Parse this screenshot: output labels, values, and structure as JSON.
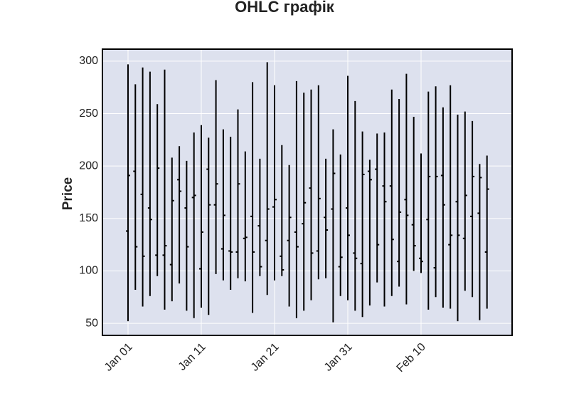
{
  "chart_data": {
    "type": "ohlc",
    "title": "OHLC графік",
    "y_label": "Price",
    "categories": [
      "Jan 01",
      "Jan 02",
      "Jan 03",
      "Jan 04",
      "Jan 05",
      "Jan 06",
      "Jan 07",
      "Jan 08",
      "Jan 09",
      "Jan 10",
      "Jan 11",
      "Jan 12",
      "Jan 13",
      "Jan 14",
      "Jan 15",
      "Jan 16",
      "Jan 17",
      "Jan 18",
      "Jan 19",
      "Jan 20",
      "Jan 21",
      "Jan 22",
      "Jan 23",
      "Jan 24",
      "Jan 25",
      "Jan 26",
      "Jan 27",
      "Jan 28",
      "Jan 29",
      "Jan 30",
      "Jan 31",
      "Feb 01",
      "Feb 02",
      "Feb 03",
      "Feb 04",
      "Feb 05",
      "Feb 06",
      "Feb 07",
      "Feb 08",
      "Feb 09",
      "Feb 10",
      "Feb 11",
      "Feb 12",
      "Feb 13",
      "Feb 14",
      "Feb 15",
      "Feb 16",
      "Feb 17",
      "Feb 18",
      "Feb 19"
    ],
    "open": [
      138,
      195,
      173,
      160,
      115,
      115,
      106,
      187,
      160,
      170,
      102,
      197,
      163,
      121,
      119,
      118,
      131,
      152,
      143,
      129,
      161,
      114,
      129,
      137,
      145,
      179,
      119,
      151,
      159,
      104,
      160,
      117,
      107,
      195,
      197,
      181,
      181,
      109,
      168,
      144,
      112,
      149,
      103,
      191,
      125,
      166,
      131,
      152,
      155,
      118
    ],
    "high": [
      297,
      278,
      294,
      290,
      259,
      292,
      208,
      219,
      205,
      232,
      239,
      227,
      282,
      235,
      228,
      254,
      214,
      280,
      207,
      299,
      277,
      220,
      201,
      281,
      270,
      273,
      277,
      207,
      235,
      211,
      286,
      262,
      233,
      206,
      231,
      232,
      273,
      264,
      288,
      247,
      212,
      271,
      276,
      256,
      277,
      249,
      252,
      243,
      202,
      210
    ],
    "low": [
      52,
      82,
      66,
      76,
      95,
      63,
      71,
      88,
      62,
      55,
      65,
      58,
      97,
      91,
      82,
      93,
      90,
      60,
      95,
      77,
      91,
      95,
      66,
      55,
      62,
      72,
      92,
      93,
      51,
      76,
      72,
      62,
      56,
      67,
      89,
      66,
      76,
      85,
      68,
      100,
      98,
      63,
      75,
      65,
      64,
      52,
      81,
      75,
      53,
      64
    ],
    "close": [
      191,
      123,
      114,
      149,
      198,
      124,
      167,
      176,
      123,
      172,
      137,
      163,
      183,
      153,
      118,
      183,
      132,
      118,
      104,
      159,
      168,
      101,
      151,
      123,
      165,
      117,
      169,
      139,
      193,
      113,
      134,
      112,
      192,
      187,
      125,
      166,
      130,
      156,
      153,
      124,
      109,
      190,
      190,
      163,
      134,
      134,
      172,
      190,
      189,
      178
    ],
    "color": "#000000",
    "background": "#dde1ee",
    "xticks": [
      "Jan 01",
      "Jan 11",
      "Jan 21",
      "Jan 31",
      "Feb 10"
    ],
    "ylim": [
      38.5,
      311.5
    ],
    "yticks": [
      50,
      100,
      150,
      200,
      250,
      300
    ],
    "grid": true
  }
}
